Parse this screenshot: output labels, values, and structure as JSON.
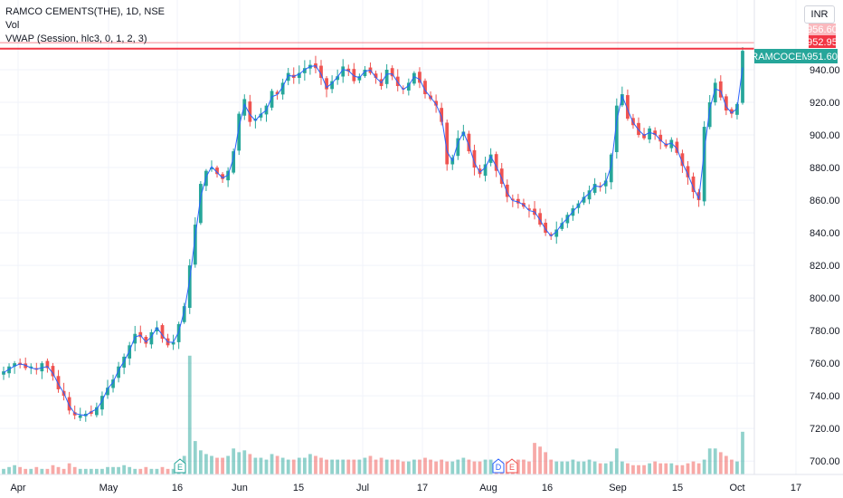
{
  "legend": {
    "symbol": "RAMCO CEMENTS(THE), 1D, NSE",
    "vol": "Vol",
    "vwap": "VWAP (Session, hlc3, 0, 1, 2, 3)"
  },
  "currency_button": "INR",
  "price_labels": {
    "ticker": "RAMCOCEM",
    "last": "951.60",
    "line_high": "956.60",
    "line_second": "952.95"
  },
  "event_markers": [
    "E",
    "D",
    "E"
  ],
  "colors": {
    "up": "#26a69a",
    "down": "#ef5350",
    "vwap": "#2962ff",
    "level": "#f23645"
  },
  "chart_data": {
    "type": "candlestick",
    "title": "RAMCO CEMENTS(THE), 1D, NSE",
    "y_ticks": [
      "700.00",
      "720.00",
      "740.00",
      "760.00",
      "780.00",
      "800.00",
      "820.00",
      "840.00",
      "860.00",
      "880.00",
      "900.00",
      "920.00",
      "940.00"
    ],
    "x_ticks": [
      "Apr",
      "May",
      "16",
      "Jun",
      "15",
      "Jul",
      "17",
      "Aug",
      "16",
      "Sep",
      "15",
      "Oct",
      "17"
    ],
    "ylim": [
      692,
      960
    ],
    "horizontal_levels": [
      956.6,
      952.95
    ],
    "closes": [
      755,
      758,
      760,
      759,
      757,
      758,
      756,
      760,
      757,
      752,
      744,
      740,
      731,
      728,
      728,
      729,
      729,
      733,
      740,
      745,
      750,
      758,
      764,
      771,
      778,
      776,
      772,
      779,
      782,
      775,
      771,
      773,
      784,
      795,
      820,
      845,
      870,
      878,
      880,
      876,
      873,
      878,
      890,
      913,
      922,
      908,
      910,
      913,
      918,
      927,
      925,
      932,
      938,
      935,
      938,
      941,
      943,
      941,
      935,
      928,
      933,
      936,
      942,
      939,
      933,
      936,
      940,
      938,
      935,
      930,
      940,
      936,
      930,
      928,
      932,
      938,
      932,
      925,
      922,
      918,
      908,
      882,
      886,
      898,
      902,
      890,
      880,
      876,
      882,
      888,
      878,
      870,
      862,
      860,
      858,
      856,
      854,
      851,
      845,
      840,
      838,
      842,
      846,
      851,
      855,
      858,
      862,
      866,
      870,
      868,
      872,
      888,
      918,
      925,
      910,
      906,
      900,
      898,
      904,
      900,
      896,
      893,
      897,
      889,
      881,
      874,
      865,
      860,
      905,
      920,
      932,
      923,
      915,
      913,
      919,
      951.6
    ],
    "volume_levels": [
      3,
      4,
      5,
      4,
      3,
      3,
      4,
      3,
      3,
      5,
      4,
      3,
      6,
      4,
      3,
      3,
      3,
      3,
      3,
      4,
      4,
      4,
      5,
      4,
      3,
      3,
      4,
      3,
      3,
      4,
      3,
      3,
      4,
      10,
      64,
      18,
      13,
      11,
      10,
      9,
      9,
      10,
      14,
      12,
      13,
      11,
      9,
      9,
      8,
      11,
      10,
      9,
      8,
      8,
      9,
      9,
      11,
      10,
      9,
      8,
      8,
      8,
      8,
      8,
      8,
      8,
      9,
      10,
      8,
      9,
      8,
      8,
      8,
      7,
      7,
      8,
      8,
      9,
      8,
      7,
      8,
      7,
      7,
      8,
      9,
      8,
      7,
      7,
      8,
      8,
      7,
      7,
      7,
      7,
      8,
      8,
      7,
      17,
      15,
      12,
      8,
      7,
      7,
      7,
      8,
      7,
      7,
      8,
      7,
      6,
      6,
      7,
      14,
      7,
      6,
      5,
      5,
      5,
      6,
      7,
      6,
      6,
      6,
      5,
      5,
      6,
      7,
      6,
      8,
      14,
      14,
      12,
      10,
      8,
      7,
      23
    ]
  }
}
